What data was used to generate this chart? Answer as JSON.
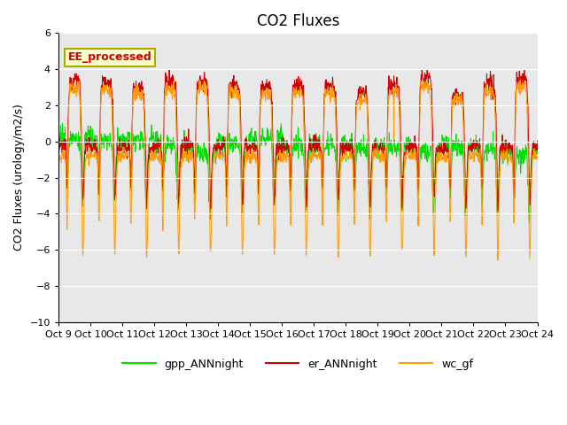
{
  "title": "CO2 Fluxes",
  "ylabel": "CO2 Fluxes (urology/m2/s)",
  "ylim": [
    -10,
    6
  ],
  "yticks": [
    -10,
    -8,
    -6,
    -4,
    -2,
    0,
    2,
    4,
    6
  ],
  "x_labels": [
    "Oct 9",
    "Oct 10",
    "Oct 11",
    "Oct 12",
    "Oct 13",
    "Oct 14",
    "Oct 15",
    "Oct 16",
    "Oct 17",
    "Oct 18",
    "Oct 19",
    "Oct 20",
    "Oct 21",
    "Oct 22",
    "Oct 23",
    "Oct 24"
  ],
  "annotation_text": "EE_processed",
  "colors": {
    "gpp_ANNnight": "#00dd00",
    "er_ANNnight": "#cc0000",
    "wc_gf": "#ff9900"
  },
  "legend_labels": [
    "gpp_ANNnight",
    "er_ANNnight",
    "wc_gf"
  ],
  "background_color": "#e8e8e8",
  "title_fontsize": 12,
  "label_fontsize": 9,
  "tick_fontsize": 8,
  "n_days": 15,
  "n_per_day": 96
}
